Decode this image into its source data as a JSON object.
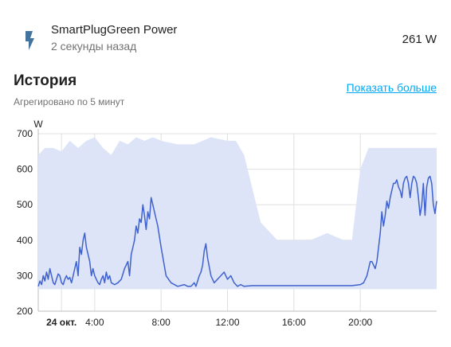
{
  "entity": {
    "icon": "flash-icon",
    "name": "SmartPlugGreen Power",
    "last_changed": "2 секунды назад",
    "state": "261 W"
  },
  "history": {
    "title": "История",
    "subtitle": "Агрегировано по 5 минут",
    "show_more": "Показать больше"
  },
  "colors": {
    "accent": "#3f62cf",
    "band": "#dde4f7",
    "grid": "#e0e0e0",
    "link": "#03a9f4"
  },
  "chart_data": {
    "type": "line",
    "ylabel": "W",
    "ylim": [
      200,
      700
    ],
    "yticks": [
      200,
      300,
      400,
      500,
      600,
      700
    ],
    "x_range_hours": [
      0.6,
      24.6
    ],
    "xticks": [
      {
        "hour": 2,
        "label": "24 окт.",
        "bold": true
      },
      {
        "hour": 4,
        "label": "4:00"
      },
      {
        "hour": 8,
        "label": "8:00"
      },
      {
        "hour": 12,
        "label": "12:00"
      },
      {
        "hour": 16,
        "label": "16:00"
      },
      {
        "hour": 20,
        "label": "20:00"
      }
    ],
    "grid": true,
    "series": [
      {
        "stat": "mean",
        "x": [
          0.6,
          0.7,
          0.8,
          0.9,
          1.0,
          1.1,
          1.2,
          1.3,
          1.4,
          1.5,
          1.6,
          1.7,
          1.8,
          1.9,
          2.0,
          2.1,
          2.2,
          2.3,
          2.4,
          2.5,
          2.6,
          2.7,
          2.8,
          2.9,
          3.0,
          3.1,
          3.2,
          3.3,
          3.4,
          3.5,
          3.6,
          3.7,
          3.8,
          3.9,
          4.0,
          4.1,
          4.2,
          4.3,
          4.4,
          4.5,
          4.6,
          4.7,
          4.8,
          4.9,
          5.0,
          5.2,
          5.4,
          5.6,
          5.8,
          6.0,
          6.1,
          6.2,
          6.3,
          6.4,
          6.5,
          6.6,
          6.7,
          6.8,
          6.9,
          7.0,
          7.1,
          7.2,
          7.3,
          7.4,
          7.5,
          7.6,
          7.8,
          8.0,
          8.3,
          8.6,
          9.0,
          9.4,
          9.6,
          9.8,
          10.0,
          10.1,
          10.2,
          10.3,
          10.4,
          10.5,
          10.6,
          10.7,
          10.8,
          11.0,
          11.2,
          11.4,
          11.6,
          11.8,
          12.0,
          12.2,
          12.4,
          12.6,
          12.8,
          13.0,
          13.5,
          14.0,
          14.5,
          15.0,
          15.5,
          16.0,
          16.5,
          17.0,
          17.5,
          18.0,
          18.5,
          19.0,
          19.5,
          20.0,
          20.2,
          20.4,
          20.5,
          20.6,
          20.7,
          20.8,
          20.9,
          21.0,
          21.1,
          21.2,
          21.3,
          21.4,
          21.5,
          21.6,
          21.7,
          21.8,
          21.9,
          22.0,
          22.1,
          22.2,
          22.3,
          22.4,
          22.5,
          22.6,
          22.7,
          22.8,
          22.9,
          23.0,
          23.1,
          23.2,
          23.3,
          23.4,
          23.5,
          23.6,
          23.7,
          23.8,
          23.9,
          24.0,
          24.1,
          24.2,
          24.3,
          24.4,
          24.5,
          24.6
        ],
        "y": [
          270,
          285,
          275,
          300,
          285,
          310,
          290,
          320,
          300,
          280,
          275,
          290,
          305,
          300,
          280,
          275,
          290,
          300,
          290,
          295,
          280,
          300,
          320,
          340,
          300,
          380,
          360,
          400,
          420,
          380,
          360,
          340,
          300,
          320,
          300,
          290,
          280,
          275,
          290,
          300,
          280,
          310,
          290,
          300,
          280,
          275,
          280,
          290,
          320,
          340,
          300,
          360,
          380,
          400,
          440,
          420,
          460,
          450,
          500,
          470,
          430,
          480,
          460,
          520,
          500,
          480,
          440,
          380,
          300,
          280,
          270,
          275,
          270,
          270,
          280,
          270,
          285,
          300,
          310,
          330,
          370,
          390,
          350,
          300,
          280,
          290,
          300,
          310,
          290,
          300,
          280,
          270,
          275,
          270,
          272,
          272,
          272,
          272,
          272,
          272,
          272,
          272,
          272,
          272,
          272,
          272,
          272,
          275,
          280,
          300,
          320,
          340,
          340,
          330,
          320,
          340,
          380,
          420,
          480,
          440,
          470,
          510,
          490,
          520,
          540,
          560,
          560,
          570,
          550,
          540,
          520,
          560,
          575,
          580,
          560,
          520,
          560,
          580,
          575,
          560,
          520,
          470,
          500,
          560,
          470,
          550,
          575,
          580,
          560,
          500,
          475,
          510
        ]
      },
      {
        "stat": "max",
        "x": [
          0.6,
          1.0,
          1.5,
          2.0,
          2.5,
          3.0,
          3.5,
          4.0,
          4.5,
          5.0,
          5.5,
          6.0,
          6.5,
          7.0,
          7.5,
          8.0,
          9.0,
          10.0,
          11.0,
          12.0,
          12.5,
          13.0,
          14.0,
          15.0,
          16.0,
          17.0,
          18.0,
          19.0,
          19.5,
          20.0,
          20.5,
          21.0,
          21.5,
          22.0,
          22.5,
          23.0,
          23.5,
          24.0,
          24.6
        ],
        "y": [
          640,
          660,
          660,
          650,
          680,
          660,
          680,
          690,
          660,
          640,
          680,
          670,
          690,
          680,
          690,
          680,
          670,
          670,
          690,
          680,
          680,
          640,
          450,
          400,
          400,
          400,
          420,
          400,
          400,
          600,
          660,
          660,
          660,
          660,
          660,
          660,
          660,
          660,
          660
        ]
      },
      {
        "stat": "min",
        "x": [
          0.6,
          2.0,
          4.0,
          6.0,
          8.0,
          10.0,
          12.0,
          14.0,
          16.0,
          18.0,
          20.0,
          22.0,
          24.0,
          24.6
        ],
        "y": [
          262,
          262,
          262,
          262,
          262,
          262,
          262,
          262,
          262,
          262,
          262,
          262,
          262,
          262
        ]
      }
    ]
  }
}
